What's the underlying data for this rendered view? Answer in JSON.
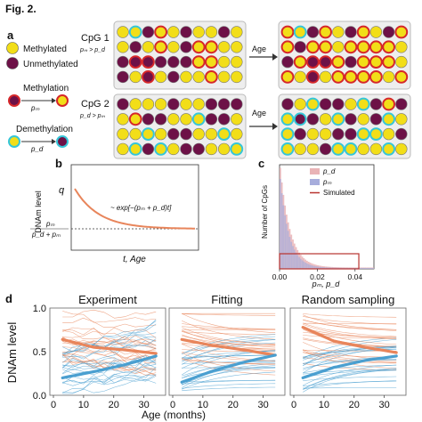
{
  "figure": {
    "title": "Fig. 2.",
    "panels": {
      "a": "a",
      "b": "b",
      "c": "c",
      "d": "d"
    }
  },
  "legend_a": {
    "methylated": "Methylated",
    "unmethylated": "Unmethylated",
    "methylation": "Methylation",
    "demethylation": "Demethylation",
    "pm": "pₘ",
    "pd": "p_d"
  },
  "cpg1": {
    "label": "CpG 1",
    "cond": "pₘ > p_d",
    "age": "Age"
  },
  "cpg2": {
    "label": "CpG 2",
    "cond": "p_d > pₘ",
    "age": "Age"
  },
  "colors": {
    "methylated": "#f2de18",
    "unmethylated": "#6d1147",
    "ring_red": "#d6272a",
    "ring_cyan": "#35c6d8",
    "curve": "#e8855b",
    "blue": "#4a9fd0",
    "pink_hist": "#e9b3b6",
    "blue_hist": "#a7addc"
  },
  "panel_b": {
    "ylabel": "DNAm level",
    "xlabel": "t, Age",
    "q": "q",
    "eq": "~ exp[−(pₘ + p_d)t]",
    "frac_num": "pₘ",
    "frac_den": "p_d + pₘ"
  },
  "chart_data": [
    {
      "type": "area",
      "panel": "c",
      "ylabel": "Number of CpGs",
      "xlabel": "pₘ, p_d",
      "x_ticks": [
        "0.00",
        "0.02",
        "0.04"
      ],
      "xlim": [
        0,
        0.05
      ],
      "series": [
        {
          "name": "p_d"
        },
        {
          "name": "pₘ"
        },
        {
          "name": "Simulated"
        }
      ],
      "simulated_range": [
        0.0,
        0.042
      ]
    },
    {
      "type": "line",
      "panel": "d",
      "ylabel": "DNAm level",
      "xlabel": "Age (months)",
      "ylim": [
        0,
        1
      ],
      "y_ticks": [
        "0.0",
        "0.5",
        "1.0"
      ],
      "x_ticks": [
        "0",
        "10",
        "20",
        "30"
      ],
      "subplots": [
        {
          "title": "Experiment",
          "mean_high": [
            0.64,
            0.55,
            0.52,
            0.48
          ],
          "mean_low": [
            0.2,
            0.27,
            0.35,
            0.45
          ]
        },
        {
          "title": "Fitting",
          "mean_high": [
            0.64,
            0.57,
            0.52,
            0.46
          ],
          "mean_low": [
            0.15,
            0.28,
            0.38,
            0.46
          ]
        },
        {
          "title": "Random sampling",
          "mean_high": [
            0.78,
            0.62,
            0.55,
            0.49
          ],
          "mean_low": [
            0.2,
            0.32,
            0.4,
            0.45
          ]
        }
      ]
    }
  ],
  "grid_cpg1_before": [
    "y",
    "yc",
    "p",
    "yr",
    "y",
    "p",
    "y",
    "y",
    "p",
    "y",
    "y",
    "p",
    "y",
    "yr",
    "y",
    "p",
    "yr",
    "yr",
    "y",
    "y",
    "p",
    "pr",
    "pr",
    "p",
    "p",
    "p",
    "yr",
    "yr",
    "y",
    "y",
    "p",
    "y",
    "pr",
    "y",
    "p",
    "y",
    "y",
    "yr",
    "y",
    "y"
  ],
  "grid_cpg1_after": [
    "yr",
    "yc",
    "p",
    "yr",
    "y",
    "p",
    "yr",
    "y",
    "p",
    "yr",
    "yr",
    "p",
    "yr",
    "yr",
    "y",
    "yr",
    "yr",
    "yr",
    "yr",
    "y",
    "p",
    "yr",
    "pr",
    "pr",
    "yr",
    "p",
    "yr",
    "yr",
    "yr",
    "y",
    "yr",
    "y",
    "pr",
    "y",
    "yr",
    "yr",
    "yr",
    "yr",
    "y",
    "yr"
  ],
  "grid_cpg2_before": [
    "p",
    "y",
    "y",
    "y",
    "p",
    "y",
    "y",
    "p",
    "p",
    "p",
    "y",
    "yr",
    "p",
    "p",
    "y",
    "y",
    "yc",
    "p",
    "p",
    "y",
    "y",
    "y",
    "yc",
    "y",
    "p",
    "p",
    "y",
    "y",
    "yc",
    "y",
    "y",
    "yc",
    "p",
    "yc",
    "y",
    "p",
    "p",
    "y",
    "y",
    "yc"
  ],
  "grid_cpg2_after": [
    "p",
    "y",
    "yc",
    "p",
    "p",
    "y",
    "yc",
    "p",
    "yr",
    "p",
    "yc",
    "pc",
    "p",
    "y",
    "yc",
    "p",
    "y",
    "p",
    "yc",
    "y",
    "yc",
    "p",
    "y",
    "y",
    "p",
    "p",
    "yc",
    "yc",
    "y",
    "p",
    "yc",
    "y",
    "y",
    "p",
    "yc",
    "yc",
    "y",
    "y",
    "yc",
    "y"
  ]
}
